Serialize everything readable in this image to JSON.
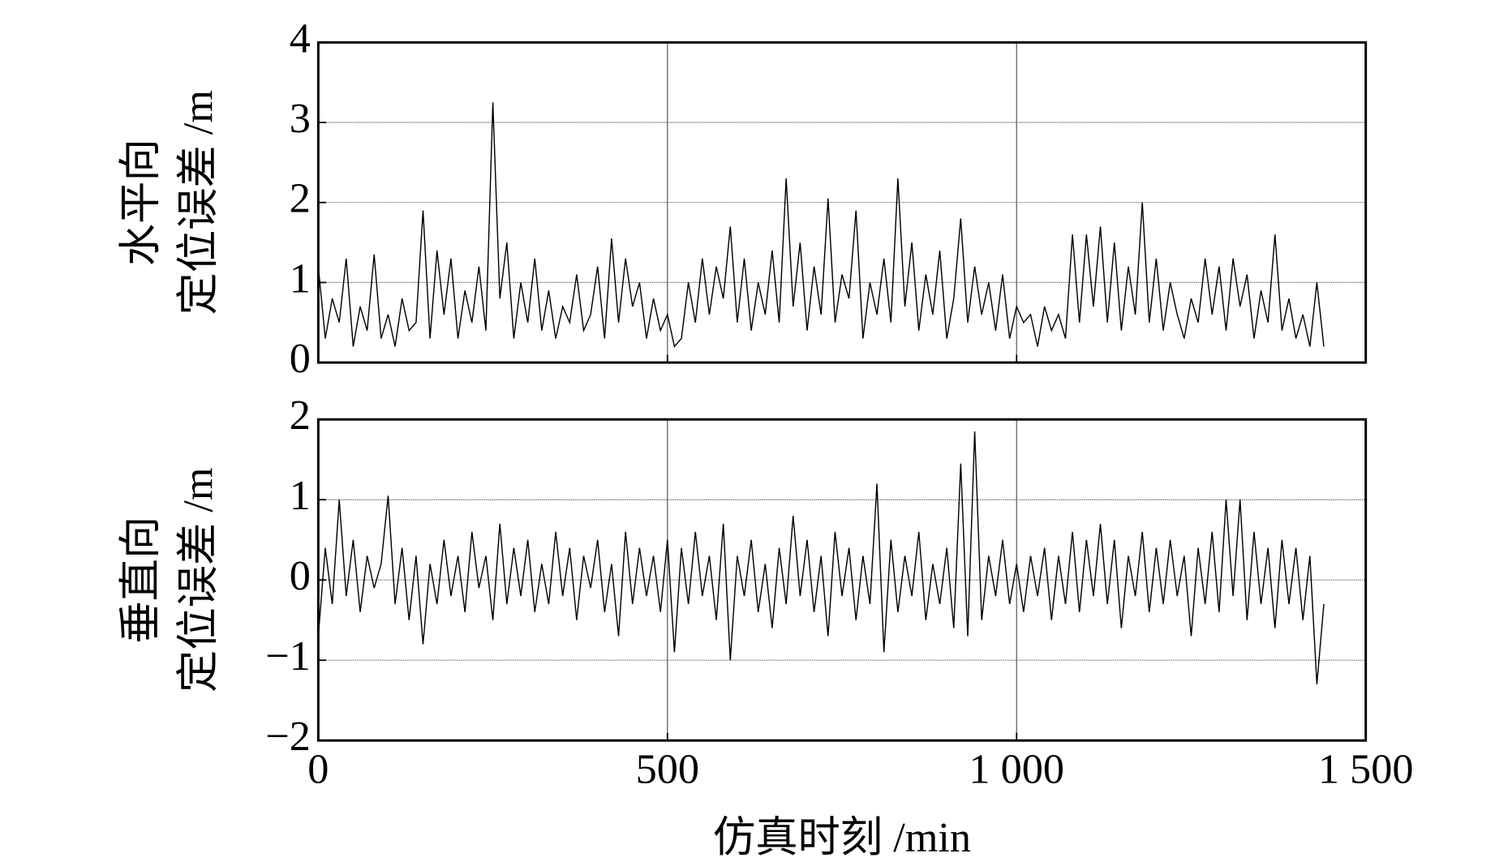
{
  "chart_data": [
    {
      "type": "line",
      "ylabel": [
        "水平向",
        "定位误差 /m"
      ],
      "color": "#000000",
      "grid": true,
      "xlim": [
        0,
        1500
      ],
      "ylim": [
        0,
        4
      ],
      "yticks": [
        0,
        1,
        2,
        3,
        4
      ],
      "x": [
        0,
        10,
        20,
        30,
        40,
        50,
        60,
        70,
        80,
        90,
        100,
        110,
        120,
        130,
        140,
        150,
        160,
        170,
        180,
        190,
        200,
        210,
        220,
        230,
        240,
        250,
        260,
        270,
        280,
        290,
        300,
        310,
        320,
        330,
        340,
        350,
        360,
        370,
        380,
        390,
        400,
        410,
        420,
        430,
        440,
        450,
        460,
        470,
        480,
        490,
        500,
        510,
        520,
        530,
        540,
        550,
        560,
        570,
        580,
        590,
        600,
        610,
        620,
        630,
        640,
        650,
        660,
        670,
        680,
        690,
        700,
        710,
        720,
        730,
        740,
        750,
        760,
        770,
        780,
        790,
        800,
        810,
        820,
        830,
        840,
        850,
        860,
        870,
        880,
        890,
        900,
        910,
        920,
        930,
        940,
        950,
        960,
        970,
        980,
        990,
        1000,
        1010,
        1020,
        1030,
        1040,
        1050,
        1060,
        1070,
        1080,
        1090,
        1100,
        1110,
        1120,
        1130,
        1140,
        1150,
        1160,
        1170,
        1180,
        1190,
        1200,
        1210,
        1220,
        1230,
        1240,
        1250,
        1260,
        1270,
        1280,
        1290,
        1300,
        1310,
        1320,
        1330,
        1340,
        1350,
        1360,
        1370,
        1380,
        1390,
        1400,
        1410,
        1420,
        1430,
        1440
      ],
      "values": [
        1.2,
        0.3,
        0.8,
        0.5,
        1.3,
        0.2,
        0.7,
        0.4,
        1.35,
        0.3,
        0.6,
        0.2,
        0.8,
        0.4,
        0.5,
        1.9,
        0.3,
        1.4,
        0.6,
        1.3,
        0.3,
        0.9,
        0.5,
        1.2,
        0.4,
        3.25,
        0.8,
        1.5,
        0.3,
        1.0,
        0.5,
        1.3,
        0.4,
        0.9,
        0.3,
        0.7,
        0.5,
        1.1,
        0.4,
        0.6,
        1.2,
        0.3,
        1.55,
        0.5,
        1.3,
        0.7,
        1.0,
        0.3,
        0.8,
        0.4,
        0.6,
        0.2,
        0.3,
        1.0,
        0.5,
        1.3,
        0.6,
        1.2,
        0.8,
        1.7,
        0.5,
        1.3,
        0.4,
        1.0,
        0.6,
        1.4,
        0.5,
        2.3,
        0.7,
        1.5,
        0.4,
        1.2,
        0.6,
        2.05,
        0.5,
        1.1,
        0.8,
        1.9,
        0.3,
        1.0,
        0.6,
        1.3,
        0.5,
        2.3,
        0.7,
        1.5,
        0.4,
        1.1,
        0.6,
        1.4,
        0.3,
        0.8,
        1.8,
        0.5,
        1.2,
        0.6,
        1.0,
        0.4,
        1.1,
        0.3,
        0.7,
        0.5,
        0.6,
        0.2,
        0.7,
        0.4,
        0.6,
        0.3,
        1.6,
        0.5,
        1.6,
        0.7,
        1.7,
        0.5,
        1.5,
        0.4,
        1.2,
        0.6,
        2.0,
        0.5,
        1.3,
        0.4,
        1.0,
        0.6,
        0.3,
        0.8,
        0.5,
        1.3,
        0.6,
        1.2,
        0.4,
        1.3,
        0.7,
        1.1,
        0.3,
        0.9,
        0.5,
        1.6,
        0.4,
        0.8,
        0.3,
        0.6,
        0.2,
        1.0,
        0.2
      ]
    },
    {
      "type": "line",
      "ylabel": [
        "垂直向",
        "定位误差 /m"
      ],
      "xlabel": "仿真时刻 /min",
      "color": "#000000",
      "grid": true,
      "xlim": [
        0,
        1500
      ],
      "xticks": [
        0,
        500,
        {
          "value": 1000,
          "label": "1 000"
        },
        {
          "value": 1500,
          "label": "1 500"
        }
      ],
      "ylim": [
        -2,
        2
      ],
      "yticks": [
        {
          "value": -2,
          "label": "−2"
        },
        {
          "value": -1,
          "label": "−1"
        },
        0,
        1,
        2
      ],
      "x": [
        0,
        10,
        20,
        30,
        40,
        50,
        60,
        70,
        80,
        90,
        100,
        110,
        120,
        130,
        140,
        150,
        160,
        170,
        180,
        190,
        200,
        210,
        220,
        230,
        240,
        250,
        260,
        270,
        280,
        290,
        300,
        310,
        320,
        330,
        340,
        350,
        360,
        370,
        380,
        390,
        400,
        410,
        420,
        430,
        440,
        450,
        460,
        470,
        480,
        490,
        500,
        510,
        520,
        530,
        540,
        550,
        560,
        570,
        580,
        590,
        600,
        610,
        620,
        630,
        640,
        650,
        660,
        670,
        680,
        690,
        700,
        710,
        720,
        730,
        740,
        750,
        760,
        770,
        780,
        790,
        800,
        810,
        820,
        830,
        840,
        850,
        860,
        870,
        880,
        890,
        900,
        910,
        920,
        930,
        940,
        950,
        960,
        970,
        980,
        990,
        1000,
        1010,
        1020,
        1030,
        1040,
        1050,
        1060,
        1070,
        1080,
        1090,
        1100,
        1110,
        1120,
        1130,
        1140,
        1150,
        1160,
        1170,
        1180,
        1190,
        1200,
        1210,
        1220,
        1230,
        1240,
        1250,
        1260,
        1270,
        1280,
        1290,
        1300,
        1310,
        1320,
        1330,
        1340,
        1350,
        1360,
        1370,
        1380,
        1390,
        1400,
        1410,
        1420,
        1430,
        1440
      ],
      "values": [
        -0.7,
        0.4,
        -0.3,
        1.0,
        -0.2,
        0.5,
        -0.4,
        0.3,
        -0.1,
        0.2,
        1.05,
        -0.3,
        0.4,
        -0.5,
        0.3,
        -0.8,
        0.2,
        -0.3,
        0.5,
        -0.2,
        0.3,
        -0.4,
        0.6,
        -0.1,
        0.3,
        -0.5,
        0.7,
        -0.3,
        0.4,
        -0.2,
        0.5,
        -0.4,
        0.2,
        -0.3,
        0.6,
        -0.2,
        0.4,
        -0.5,
        0.3,
        -0.1,
        0.5,
        -0.4,
        0.2,
        -0.7,
        0.6,
        -0.3,
        0.4,
        -0.2,
        0.3,
        -0.4,
        0.5,
        -0.9,
        0.4,
        -0.3,
        0.6,
        -0.2,
        0.3,
        -0.5,
        0.7,
        -1.0,
        0.3,
        -0.2,
        0.5,
        -0.4,
        0.2,
        -0.6,
        0.4,
        -0.3,
        0.8,
        -0.2,
        0.5,
        -0.4,
        0.3,
        -0.7,
        0.6,
        -0.2,
        0.4,
        -0.5,
        0.3,
        -0.3,
        1.2,
        -0.9,
        0.5,
        -0.4,
        0.3,
        -0.2,
        0.6,
        -0.5,
        0.2,
        -0.3,
        0.4,
        -0.6,
        1.45,
        -0.7,
        1.85,
        -0.5,
        0.3,
        -0.2,
        0.5,
        -0.3,
        0.2,
        -0.4,
        0.3,
        -0.2,
        0.4,
        -0.5,
        0.3,
        -0.3,
        0.6,
        -0.4,
        0.5,
        -0.2,
        0.7,
        -0.3,
        0.5,
        -0.6,
        0.3,
        -0.2,
        0.6,
        -0.4,
        0.4,
        -0.3,
        0.5,
        -0.2,
        0.3,
        -0.7,
        0.4,
        -0.3,
        0.6,
        -0.4,
        1.0,
        -0.2,
        1.0,
        -0.5,
        0.6,
        -0.3,
        0.4,
        -0.6,
        0.5,
        -0.3,
        0.4,
        -0.5,
        0.3,
        -1.3,
        -0.3
      ]
    }
  ]
}
